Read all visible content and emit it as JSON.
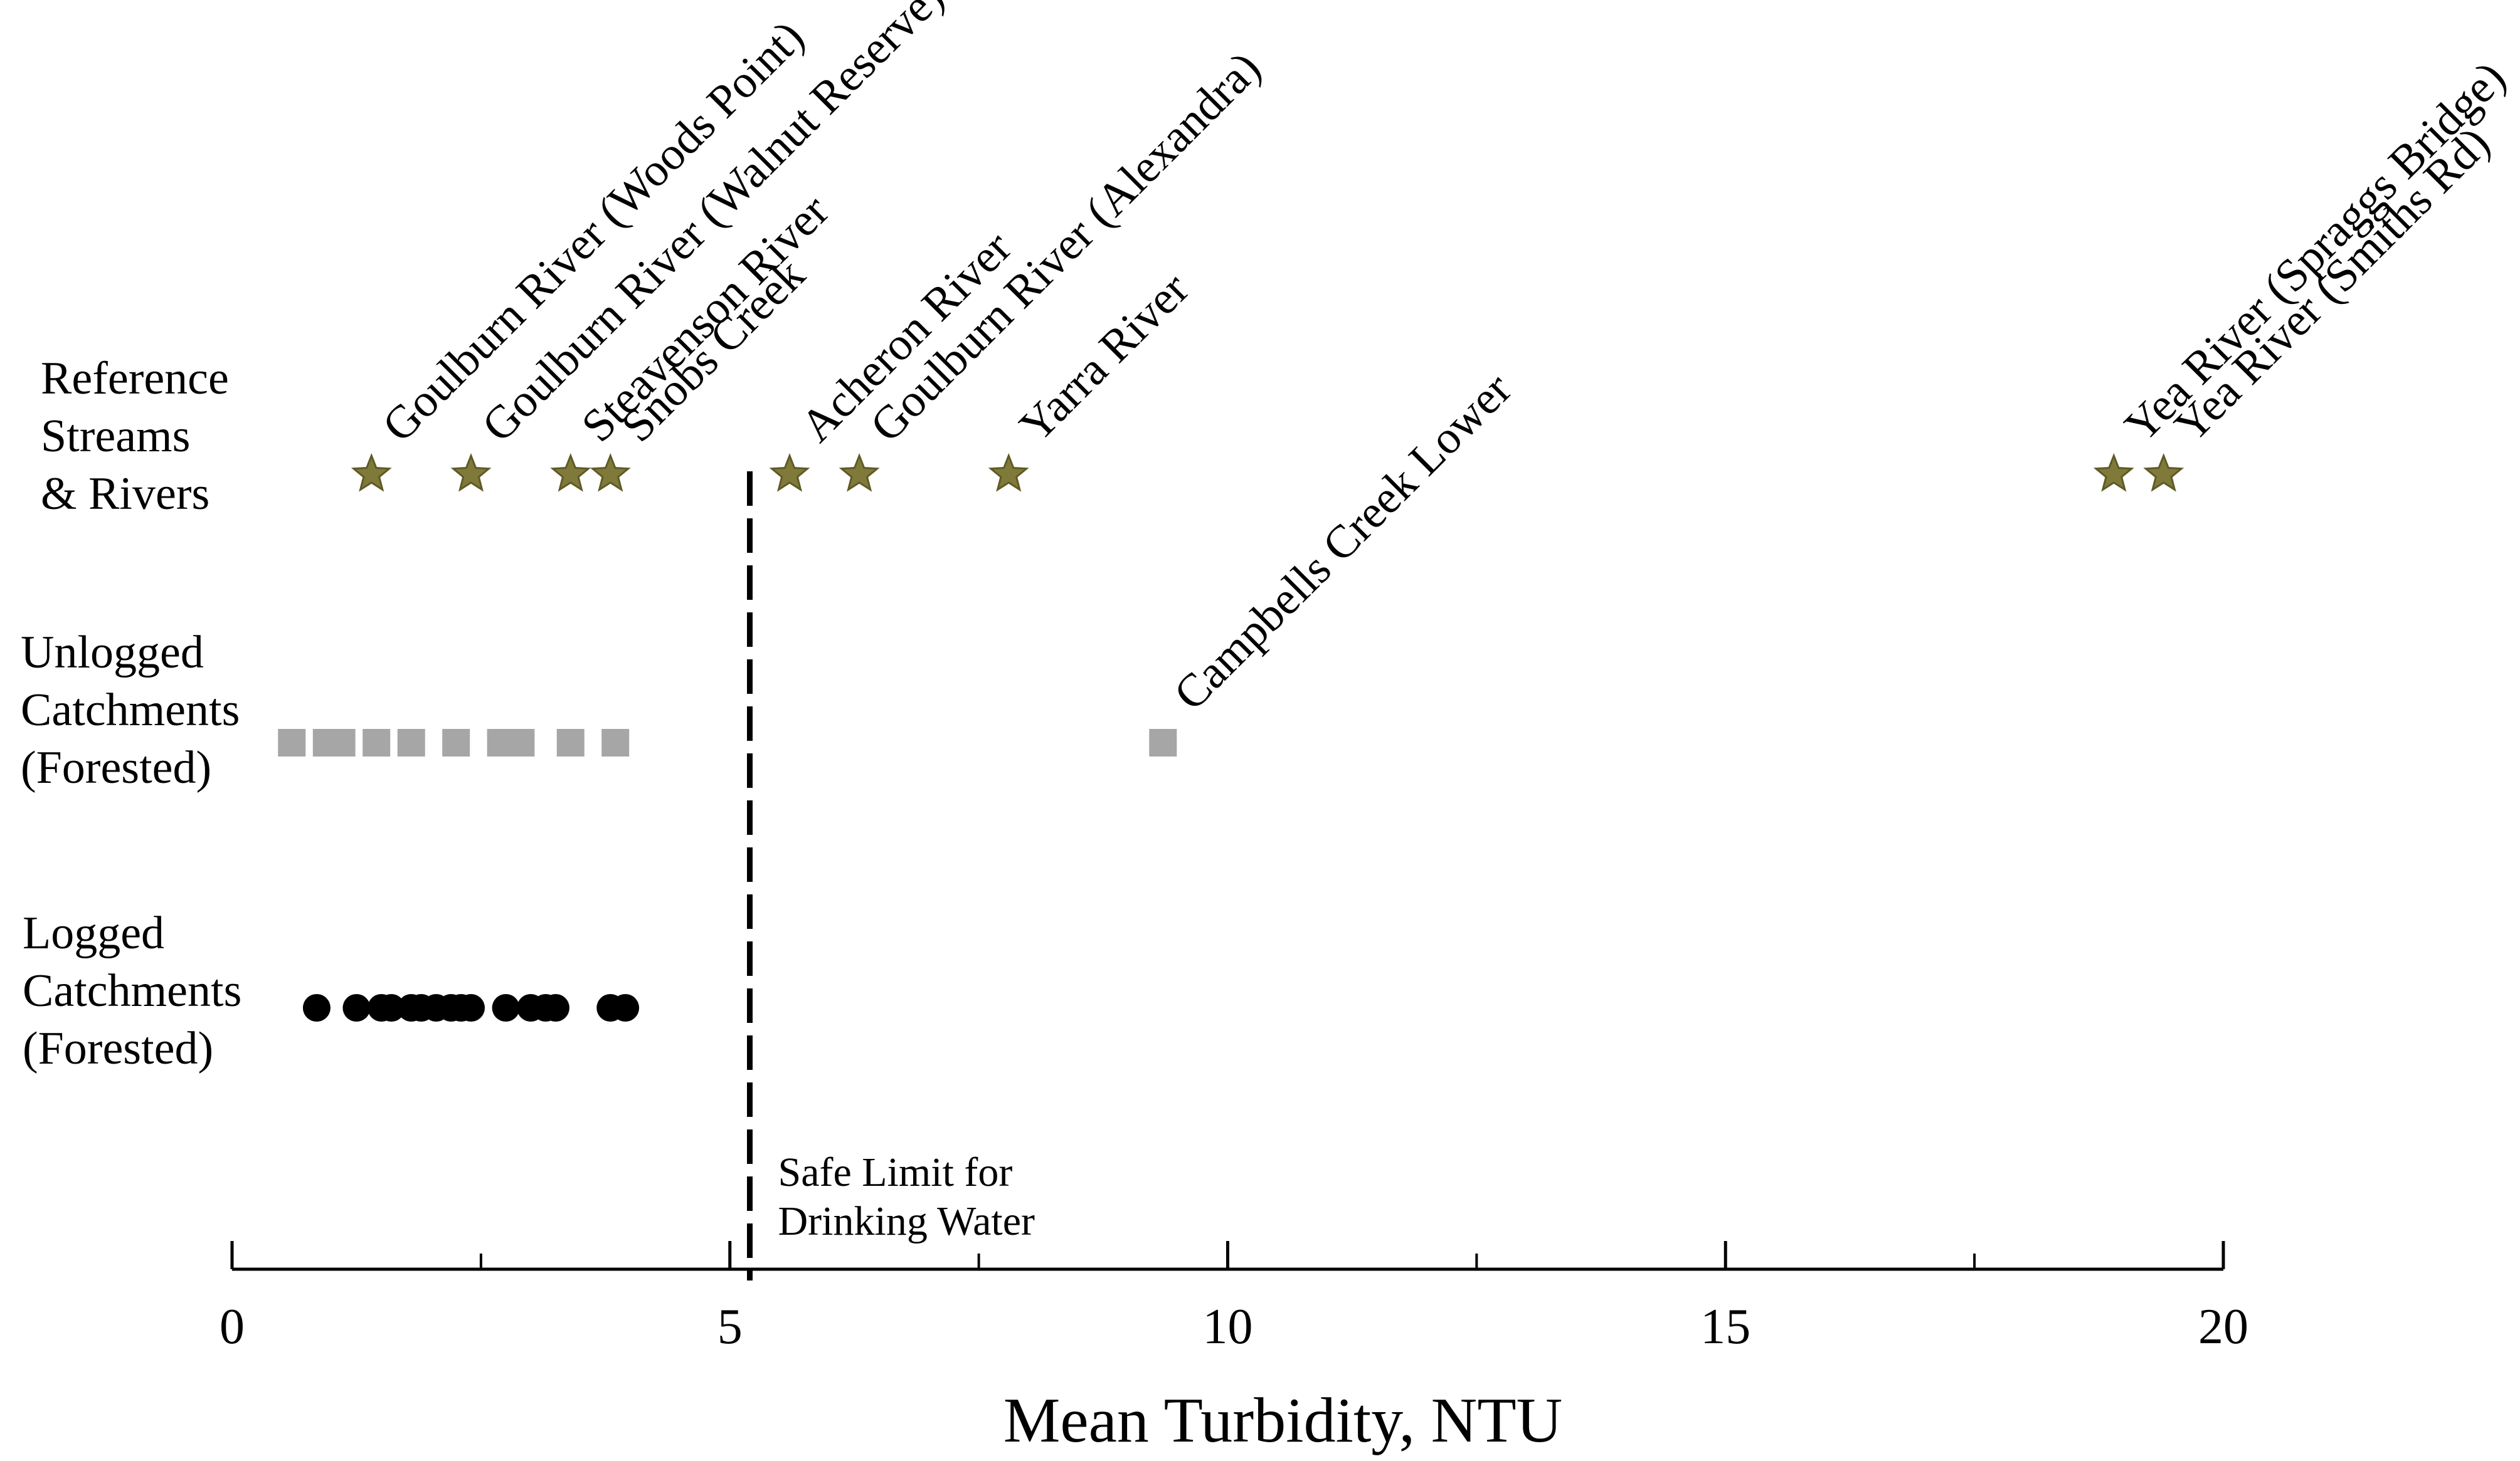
{
  "chart_data": {
    "type": "scatter",
    "title": "",
    "xlabel": "Mean Turbidity, NTU",
    "ylabel": "",
    "xlim": [
      0,
      20
    ],
    "xticks": [
      0,
      5,
      10,
      15,
      20
    ],
    "minor_ticks": [
      2.5,
      7.5,
      12.5,
      17.5
    ],
    "grid": false,
    "colors": {
      "reference": "#7f7a3a",
      "reference_outline": "#5f5a25",
      "unlogged": "#a6a6a6",
      "logged": "#000000",
      "axis": "#000000",
      "threshold": "#000000"
    },
    "series": [
      {
        "name": "Reference Streams & Rivers",
        "label_lines": [
          "Reference",
          "Streams",
          "& Rivers"
        ],
        "marker": "star",
        "points": [
          {
            "x": 1.4,
            "label": "Goulburn River (Woods Point)"
          },
          {
            "x": 2.4,
            "label": "Goulburn River (Walnut Reserve)"
          },
          {
            "x": 3.4,
            "label": "Steavenson River"
          },
          {
            "x": 3.8,
            "label": "Snobs Creek"
          },
          {
            "x": 5.6,
            "label": "Acheron River"
          },
          {
            "x": 6.3,
            "label": "Goulburn River (Alexandra)"
          },
          {
            "x": 7.8,
            "label": "Yarra River"
          },
          {
            "x": 18.9,
            "label": "Yea River (Spraggs Bridge)"
          },
          {
            "x": 19.4,
            "label": "Yea River (Smiths Rd)"
          }
        ]
      },
      {
        "name": "Unlogged Catchments (Forested)",
        "label_lines": [
          "Unlogged",
          "Catchments",
          "(Forested)"
        ],
        "marker": "square",
        "points": [
          {
            "x": 0.6
          },
          {
            "x": 0.95
          },
          {
            "x": 1.1
          },
          {
            "x": 1.45
          },
          {
            "x": 1.8
          },
          {
            "x": 2.25
          },
          {
            "x": 2.7
          },
          {
            "x": 2.9
          },
          {
            "x": 3.4
          },
          {
            "x": 3.85
          },
          {
            "x": 9.35,
            "label": "Campbells Creek Lower"
          }
        ]
      },
      {
        "name": "Logged Catchments (Forested)",
        "label_lines": [
          "Logged",
          "Catchments",
          "(Forested)"
        ],
        "marker": "circle",
        "points": [
          {
            "x": 0.85
          },
          {
            "x": 1.25
          },
          {
            "x": 1.5
          },
          {
            "x": 1.6
          },
          {
            "x": 1.8
          },
          {
            "x": 1.9
          },
          {
            "x": 2.05
          },
          {
            "x": 2.2
          },
          {
            "x": 2.3
          },
          {
            "x": 2.4
          },
          {
            "x": 2.75
          },
          {
            "x": 3.0
          },
          {
            "x": 3.15
          },
          {
            "x": 3.25
          },
          {
            "x": 3.8
          },
          {
            "x": 3.95
          }
        ]
      }
    ],
    "threshold": {
      "x": 5.2,
      "label_lines": [
        "Safe Limit for",
        "Drinking Water"
      ]
    }
  }
}
